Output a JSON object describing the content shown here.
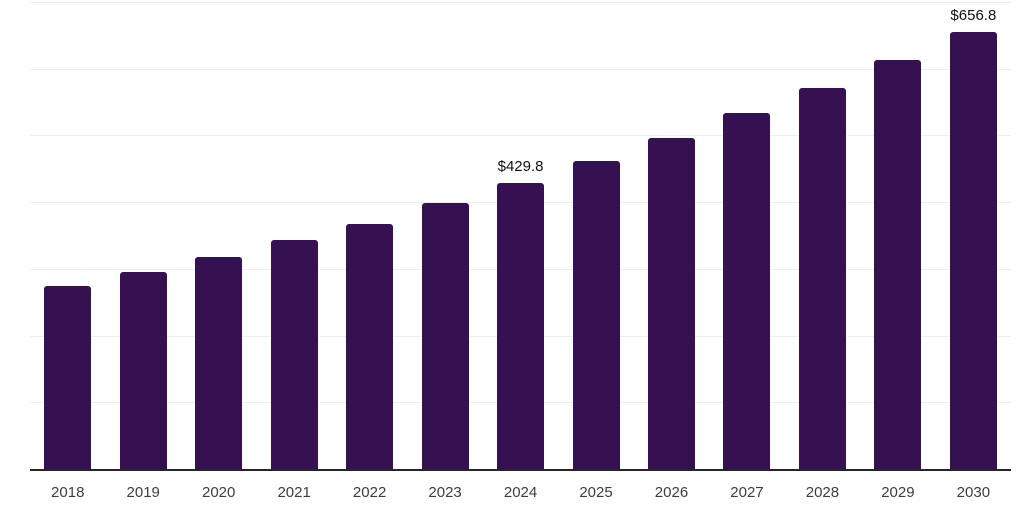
{
  "chart_data": {
    "type": "bar",
    "title": "",
    "xlabel": "",
    "ylabel": "",
    "categories": [
      "2018",
      "2019",
      "2020",
      "2021",
      "2022",
      "2023",
      "2024",
      "2025",
      "2026",
      "2027",
      "2028",
      "2029",
      "2030"
    ],
    "values": [
      276,
      297,
      319,
      345,
      369,
      400,
      429.8,
      463,
      498,
      535,
      573,
      615,
      656.8
    ],
    "value_labels": {
      "2024": "$429.8",
      "2030": "$656.8"
    },
    "ylim": [
      0,
      700
    ],
    "gridline_step": 100,
    "grid": "horizontal",
    "y_axis_labels_visible": false,
    "legend_position": "none",
    "colors": {
      "bar": "#351151",
      "axis_line": "#262626",
      "gridline": "#efefef",
      "tick_label": "#3d3d3d",
      "value_label": "#111111",
      "background": "#ffffff"
    }
  }
}
